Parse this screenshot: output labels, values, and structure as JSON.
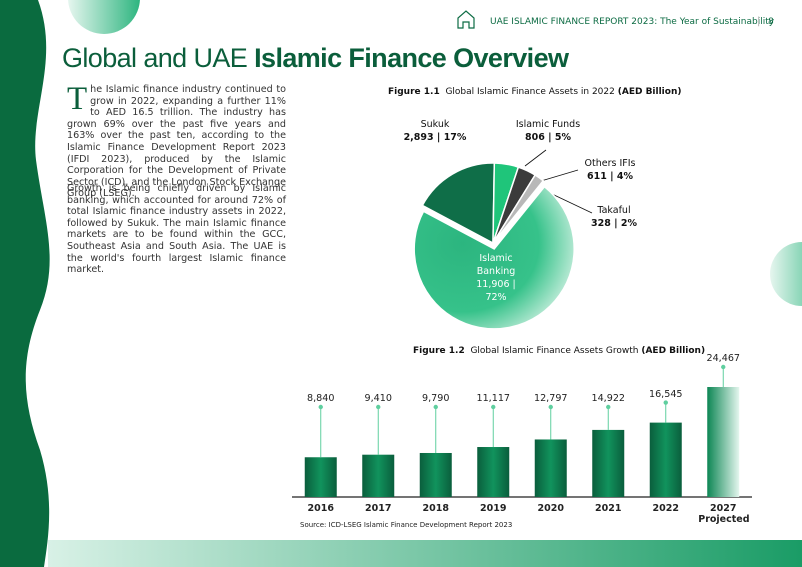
{
  "header": {
    "text": "UAE ISLAMIC FINANCE REPORT 2023: The Year of Sustainability",
    "page": "8"
  },
  "title_light": "Global and UAE",
  "title_bold": "Islamic Finance Overview",
  "paragraphs": [
    "The Islamic finance industry continued to grow in 2022, expanding a further 11% to AED 16.5 trillion. The industry has grown 69% over the past five years and 163% over the past ten, according to the Islamic Finance Development Report 2023 (IFDI 2023), produced by the Islamic Corporation for the Development of Private Sector (ICD), and the London Stock Exchange Group (LSEG).",
    "Growth is being chiefly driven by Islamic banking, which accounted for around 72% of total Islamic finance industry assets in 2022, followed by Sukuk. The main Islamic finance markets are to be found within the GCC, Southeast Asia and South Asia. The UAE is the world's fourth largest Islamic finance market."
  ],
  "chart_data": [
    {
      "type": "pie",
      "figure": "Figure 1.1",
      "title": "Global Islamic Finance Assets in 2022",
      "unit": "(AED Billion)",
      "categories": [
        "Sukuk",
        "Islamic Funds",
        "Others IFIs",
        "Takaful",
        "Islamic Banking"
      ],
      "values": [
        2893,
        806,
        611,
        328,
        11906
      ],
      "value_labels": [
        "2,893 | 17%",
        "806 | 5%",
        "611 | 4%",
        "328 | 2%",
        "11,906 | 72%"
      ],
      "colors": [
        "#0f6e48",
        "#1fc57a",
        "#3b3b3b",
        "#b8b8b8",
        "#2cb57f"
      ]
    },
    {
      "type": "bar",
      "figure": "Figure 1.2",
      "title": "Global Islamic Finance Assets Growth",
      "unit": "(AED Billion)",
      "categories": [
        "2016",
        "2017",
        "2018",
        "2019",
        "2020",
        "2021",
        "2022",
        "2027 Projected"
      ],
      "values": [
        8840,
        9410,
        9790,
        11117,
        12797,
        14922,
        16545,
        24467
      ],
      "value_labels": [
        "8,840",
        "9,410",
        "9,790",
        "11,117",
        "12,797",
        "14,922",
        "16,545",
        "24,467"
      ],
      "color": "#0d7a4f",
      "source": "Source: ICD-LSEG Islamic Finance Development Report 2023"
    }
  ]
}
